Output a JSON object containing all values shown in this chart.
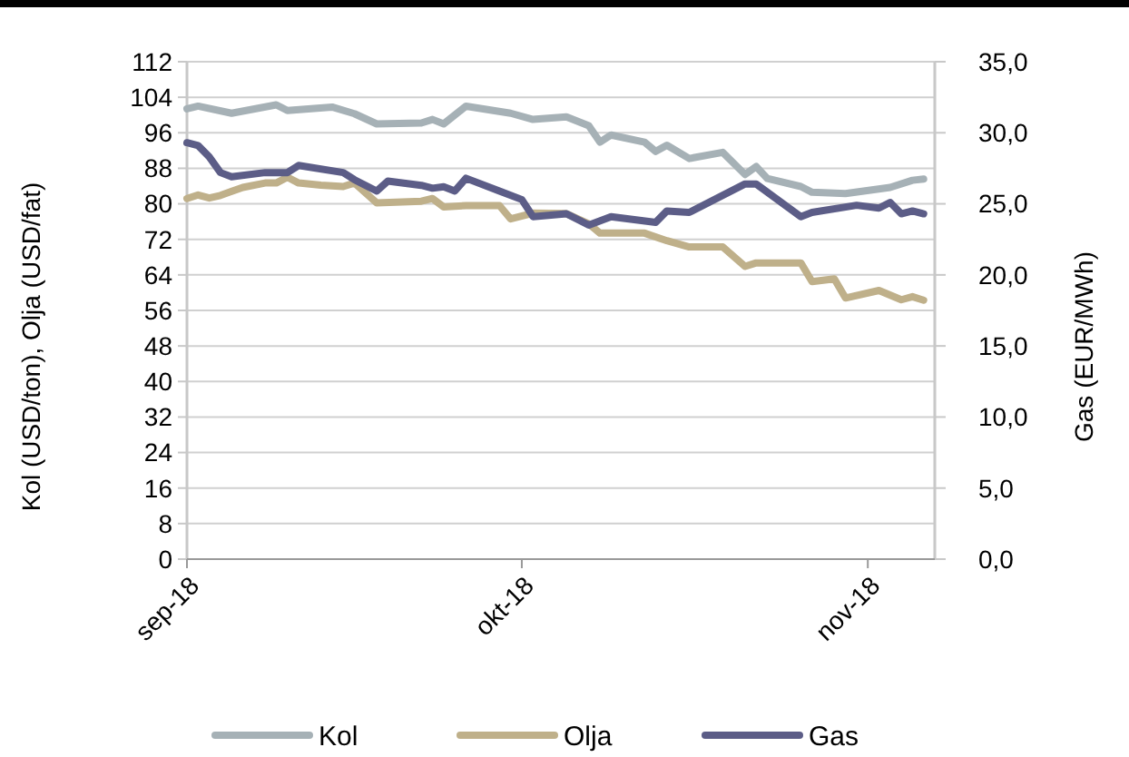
{
  "chart_data": {
    "type": "line",
    "ylabel": "Kol (USD/ton), Olja (USD/fat)",
    "y2label": "Gas (EUR/MWh)",
    "xlim": [
      "2018-09-01",
      "2018-11-07"
    ],
    "xticks": [
      {
        "value": "2018-09-01",
        "label": "sep-18"
      },
      {
        "value": "2018-10-01",
        "label": "okt-18"
      },
      {
        "value": "2018-11-01",
        "label": "nov-18"
      }
    ],
    "ylim": [
      0,
      112
    ],
    "yticks": [
      0,
      8,
      16,
      24,
      32,
      40,
      48,
      56,
      64,
      72,
      80,
      88,
      96,
      104,
      112
    ],
    "y2lim": [
      0,
      35
    ],
    "y2ticks": [
      {
        "value": 0,
        "label": "0,0"
      },
      {
        "value": 5,
        "label": "5,0"
      },
      {
        "value": 10,
        "label": "10,0"
      },
      {
        "value": 15,
        "label": "15,0"
      },
      {
        "value": 20,
        "label": "20,0"
      },
      {
        "value": 25,
        "label": "25,0"
      },
      {
        "value": 30,
        "label": "30,0"
      },
      {
        "value": 35,
        "label": "35,0"
      }
    ],
    "grid": "y",
    "legend": "bottom",
    "marker": "none",
    "line_style": "solid",
    "series": [
      {
        "name": "Kol",
        "color": "#a6b1b6",
        "x": [
          "2018-09-01",
          "2018-09-02",
          "2018-09-05",
          "2018-09-09",
          "2018-09-10",
          "2018-09-14",
          "2018-09-16",
          "2018-09-18",
          "2018-09-22",
          "2018-09-23",
          "2018-09-24",
          "2018-09-26",
          "2018-09-30",
          "2018-10-02",
          "2018-10-05",
          "2018-10-07",
          "2018-10-08",
          "2018-10-09",
          "2018-10-12",
          "2018-10-13",
          "2018-10-14",
          "2018-10-16",
          "2018-10-19",
          "2018-10-21",
          "2018-10-22",
          "2018-10-23",
          "2018-10-26",
          "2018-10-27",
          "2018-10-30",
          "2018-11-03",
          "2018-11-05",
          "2018-11-06"
        ],
        "values": [
          101.4,
          102,
          100.4,
          102.3,
          101,
          101.8,
          100.3,
          98,
          98.2,
          99,
          98,
          102,
          100.4,
          99,
          99.6,
          97.6,
          93.9,
          95.5,
          93.9,
          91.8,
          93.2,
          90.2,
          91.6,
          86.6,
          88.4,
          85.7,
          83.9,
          82.6,
          82.3,
          83.7,
          85.3,
          85.6
        ]
      },
      {
        "name": "Olja",
        "color": "#bfb08a",
        "x": [
          "2018-09-01",
          "2018-09-02",
          "2018-09-03",
          "2018-09-04",
          "2018-09-06",
          "2018-09-08",
          "2018-09-09",
          "2018-09-10",
          "2018-09-11",
          "2018-09-13",
          "2018-09-15",
          "2018-09-16",
          "2018-09-18",
          "2018-09-22",
          "2018-09-23",
          "2018-09-24",
          "2018-09-26",
          "2018-09-29",
          "2018-09-30",
          "2018-10-02",
          "2018-10-05",
          "2018-10-07",
          "2018-10-08",
          "2018-10-12",
          "2018-10-14",
          "2018-10-16",
          "2018-10-19",
          "2018-10-21",
          "2018-10-22",
          "2018-10-26",
          "2018-10-27",
          "2018-10-29",
          "2018-10-30",
          "2018-11-02",
          "2018-11-04",
          "2018-11-05",
          "2018-11-06"
        ],
        "values": [
          81.2,
          82,
          81.3,
          81.9,
          83.7,
          84.7,
          84.7,
          86,
          84.7,
          84.2,
          83.9,
          84.7,
          80.2,
          80.6,
          81.2,
          79.3,
          79.6,
          79.6,
          76.6,
          77.9,
          77.8,
          75.5,
          73.4,
          73.4,
          71.7,
          70.3,
          70.3,
          65.9,
          66.7,
          66.7,
          62.5,
          63.1,
          58.8,
          60.5,
          58.4,
          59.1,
          58.3
        ]
      },
      {
        "name": "Gas",
        "color": "#5c5d87",
        "axis": "y2",
        "x": [
          "2018-09-01",
          "2018-09-02",
          "2018-09-03",
          "2018-09-04",
          "2018-09-05",
          "2018-09-08",
          "2018-09-10",
          "2018-09-11",
          "2018-09-15",
          "2018-09-16",
          "2018-09-18",
          "2018-09-19",
          "2018-09-22",
          "2018-09-23",
          "2018-09-24",
          "2018-09-25",
          "2018-09-26",
          "2018-09-29",
          "2018-10-01",
          "2018-10-02",
          "2018-10-05",
          "2018-10-07",
          "2018-10-09",
          "2018-10-13",
          "2018-10-14",
          "2018-10-16",
          "2018-10-21",
          "2018-10-22",
          "2018-10-26",
          "2018-10-27",
          "2018-10-31",
          "2018-11-02",
          "2018-11-03",
          "2018-11-04",
          "2018-11-05",
          "2018-11-06"
        ],
        "values": [
          29.3,
          29.1,
          28.3,
          27.2,
          26.9,
          27.2,
          27.2,
          27.7,
          27.2,
          26.7,
          25.9,
          26.6,
          26.3,
          26.1,
          26.2,
          25.9,
          26.8,
          25.9,
          25.3,
          24.1,
          24.3,
          23.5,
          24.1,
          23.7,
          24.5,
          24.4,
          26.4,
          26.4,
          24.1,
          24.4,
          24.9,
          24.7,
          25.1,
          24.3,
          24.5,
          24.3
        ]
      }
    ]
  }
}
